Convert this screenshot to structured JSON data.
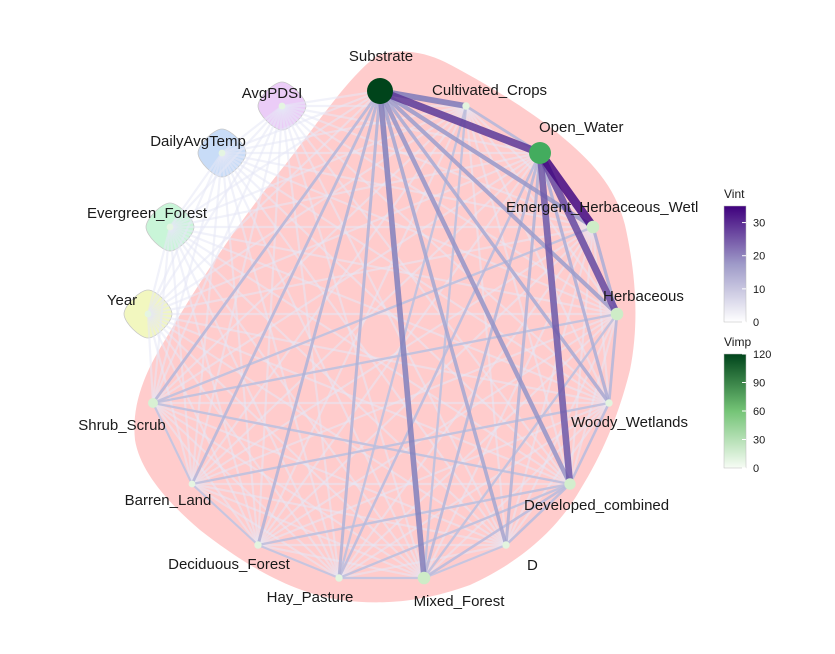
{
  "chart_data": {
    "type": "network",
    "nodes": [
      {
        "name": "Substrate",
        "vimp": 120,
        "group": "main"
      },
      {
        "name": "Cultivated_Crops",
        "vimp": 5,
        "group": "main"
      },
      {
        "name": "Open_Water",
        "vimp": 75,
        "group": "main"
      },
      {
        "name": "Emergent_Herbaceous_Wetlands",
        "display": "Emergent_Herbaceous_Wetl",
        "vimp": 25,
        "group": "main"
      },
      {
        "name": "Herbaceous",
        "vimp": 25,
        "group": "main"
      },
      {
        "name": "Woody_Wetlands",
        "vimp": 5,
        "group": "main"
      },
      {
        "name": "Developed_combined",
        "vimp": 20,
        "group": "main"
      },
      {
        "name": "D",
        "vimp": 5,
        "group": "main"
      },
      {
        "name": "Mixed_Forest",
        "vimp": 25,
        "group": "main"
      },
      {
        "name": "Hay_Pasture",
        "vimp": 5,
        "group": "main"
      },
      {
        "name": "Deciduous_Forest",
        "vimp": 5,
        "group": "main"
      },
      {
        "name": "Barren_Land",
        "vimp": 3,
        "group": "main"
      },
      {
        "name": "Shrub_Scrub",
        "vimp": 15,
        "group": "main"
      },
      {
        "name": "Year",
        "vimp": 3,
        "group": "separate",
        "color": "#f2f7bf"
      },
      {
        "name": "Evergreen_Forest",
        "vimp": 3,
        "group": "separate",
        "color": "#c9f5d8"
      },
      {
        "name": "DailyAvgTemp",
        "vimp": 3,
        "group": "separate",
        "color": "#c8dcf7"
      },
      {
        "name": "AvgPDSI",
        "vimp": 3,
        "group": "separate",
        "color": "#ebccf7"
      }
    ],
    "edges": [
      {
        "from": "Substrate",
        "to": "Open_Water",
        "vint": 28
      },
      {
        "from": "Open_Water",
        "to": "Emergent_Herbaceous_Wetlands",
        "vint": 34
      },
      {
        "from": "Open_Water",
        "to": "Herbaceous",
        "vint": 26
      },
      {
        "from": "Open_Water",
        "to": "Developed_combined",
        "vint": 24
      },
      {
        "from": "Substrate",
        "to": "Cultivated_Crops",
        "vint": 20
      },
      {
        "from": "Substrate",
        "to": "Mixed_Forest",
        "vint": 19
      },
      {
        "from": "Substrate",
        "to": "Developed_combined",
        "vint": 14
      },
      {
        "from": "Substrate",
        "to": "Emergent_Herbaceous_Wetlands",
        "vint": 13
      },
      {
        "from": "Substrate",
        "to": "Herbaceous",
        "vint": 12
      },
      {
        "from": "Substrate",
        "to": "D",
        "vint": 10
      },
      {
        "from": "Substrate",
        "to": "Woody_Wetlands",
        "vint": 9
      },
      {
        "from": "Substrate",
        "to": "Hay_Pasture",
        "vint": 7
      },
      {
        "from": "Substrate",
        "to": "Deciduous_Forest",
        "vint": 7
      },
      {
        "from": "Substrate",
        "to": "Barren_Land",
        "vint": 6
      },
      {
        "from": "Substrate",
        "to": "Shrub_Scrub",
        "vint": 6
      },
      {
        "from": "Open_Water",
        "to": "Woody_Wetlands",
        "vint": 8
      },
      {
        "from": "Open_Water",
        "to": "D",
        "vint": 7
      },
      {
        "from": "Open_Water",
        "to": "Mixed_Forest",
        "vint": 6
      },
      {
        "from": "Open_Water",
        "to": "Hay_Pasture",
        "vint": 5
      },
      {
        "from": "Cultivated_Crops",
        "to": "Open_Water",
        "vint": 6
      },
      {
        "from": "Emergent_Herbaceous_Wetlands",
        "to": "Herbaceous",
        "vint": 8
      },
      {
        "from": "Herbaceous",
        "to": "Woody_Wetlands",
        "vint": 6
      },
      {
        "from": "Woody_Wetlands",
        "to": "Developed_combined",
        "vint": 5
      },
      {
        "from": "Developed_combined",
        "to": "D",
        "vint": 5
      },
      {
        "from": "Developed_combined",
        "to": "Mixed_Forest",
        "vint": 5
      },
      {
        "from": "Shrub_Scrub",
        "to": "Developed_combined",
        "vint": 4
      },
      {
        "from": "Shrub_Scrub",
        "to": "Herbaceous",
        "vint": 4
      },
      {
        "from": "Barren_Land",
        "to": "Woody_Wetlands",
        "vint": 4
      },
      {
        "from": "Deciduous_Forest",
        "to": "Developed_combined",
        "vint": 4
      },
      {
        "from": "Hay_Pasture",
        "to": "Developed_combined",
        "vint": 4
      },
      {
        "from": "Mixed_Forest",
        "to": "Herbaceous",
        "vint": 4
      },
      {
        "from": "Cultivated_Crops",
        "to": "Mixed_Forest",
        "vint": 4
      },
      {
        "from": "Cultivated_Crops",
        "to": "Hay_Pasture",
        "vint": 4
      },
      {
        "from": "Emergent_Herbaceous_Wetlands",
        "to": "Shrub_Scrub",
        "vint": 4
      },
      {
        "from": "Shrub_Scrub",
        "to": "Barren_Land",
        "vint": 3
      },
      {
        "from": "Barren_Land",
        "to": "Deciduous_Forest",
        "vint": 3
      },
      {
        "from": "Deciduous_Forest",
        "to": "Hay_Pasture",
        "vint": 3
      },
      {
        "from": "Hay_Pasture",
        "to": "Mixed_Forest",
        "vint": 3
      },
      {
        "from": "Mixed_Forest",
        "to": "D",
        "vint": 3
      }
    ],
    "legends": [
      {
        "title": "Vint",
        "ticks": [
          "0",
          "10",
          "20",
          "30"
        ],
        "range": [
          0,
          35
        ],
        "low_color": "#ffffff",
        "high_color": "#3f007d"
      },
      {
        "title": "Vimp",
        "ticks": [
          "0",
          "30",
          "60",
          "90",
          "120"
        ],
        "range": [
          0,
          120
        ],
        "low_color": "#f7fcf5",
        "high_color": "#00441b"
      }
    ],
    "background_region_color": "#ffcccc",
    "faint_edge_color": "#e6e8f5"
  }
}
